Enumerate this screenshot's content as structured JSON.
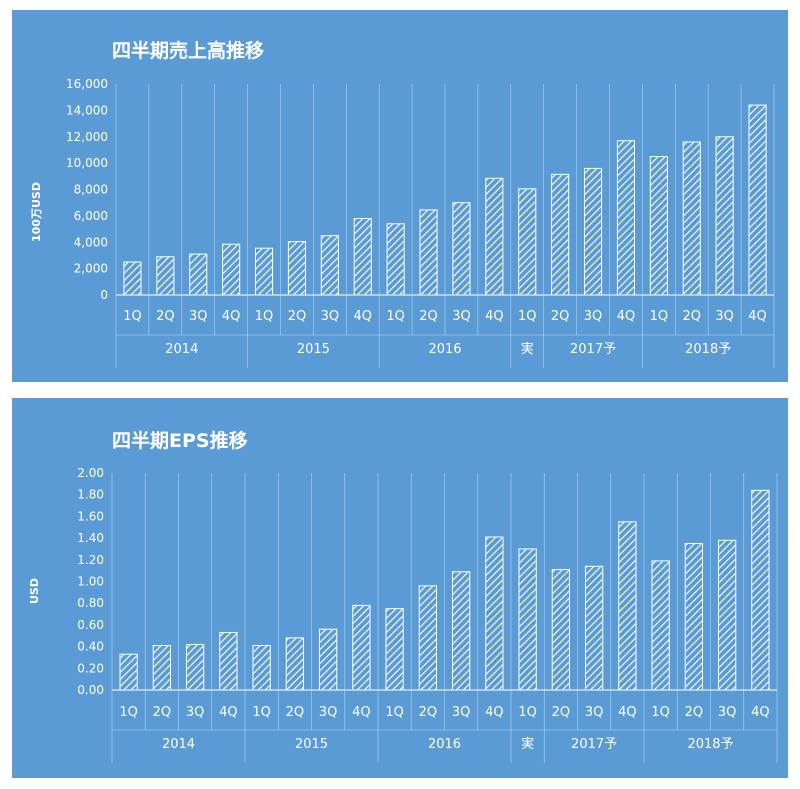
{
  "chart_data": [
    {
      "type": "bar",
      "title": "四半期売上高推移",
      "ylabel": "100万USD",
      "ylim": [
        0,
        16000
      ],
      "yticks": [
        "0",
        "2,000",
        "4,000",
        "6,000",
        "8,000",
        "10,000",
        "12,000",
        "14,000",
        "16,000"
      ],
      "categories": [
        "1Q",
        "2Q",
        "3Q",
        "4Q",
        "1Q",
        "2Q",
        "3Q",
        "4Q",
        "1Q",
        "2Q",
        "3Q",
        "4Q",
        "1Q",
        "2Q",
        "3Q",
        "4Q",
        "1Q",
        "2Q",
        "3Q",
        "4Q"
      ],
      "groups": [
        {
          "label": "2014",
          "span": 4
        },
        {
          "label": "2015",
          "span": 4
        },
        {
          "label": "2016",
          "span": 4
        },
        {
          "label": "実",
          "span": 1
        },
        {
          "label": "2017予",
          "span": 3
        },
        {
          "label": "2018予",
          "span": 4
        }
      ],
      "values": [
        2500,
        2900,
        3100,
        3850,
        3550,
        4050,
        4500,
        5800,
        5400,
        6450,
        7000,
        8850,
        8050,
        9150,
        9600,
        11700,
        10500,
        11600,
        12000,
        14400
      ],
      "grid": false,
      "colors": {
        "background": "#5b9bd5",
        "bar": "#ffffff",
        "text": "#ffffff"
      }
    },
    {
      "type": "bar",
      "title": "四半期EPS推移",
      "ylabel": "USD",
      "ylim": [
        0,
        2.0
      ],
      "yticks": [
        "0.00",
        "0.20",
        "0.40",
        "0.60",
        "0.80",
        "1.00",
        "1.20",
        "1.40",
        "1.60",
        "1.80",
        "2.00"
      ],
      "categories": [
        "1Q",
        "2Q",
        "3Q",
        "4Q",
        "1Q",
        "2Q",
        "3Q",
        "4Q",
        "1Q",
        "2Q",
        "3Q",
        "4Q",
        "1Q",
        "2Q",
        "3Q",
        "4Q",
        "1Q",
        "2Q",
        "3Q",
        "4Q"
      ],
      "groups": [
        {
          "label": "2014",
          "span": 4
        },
        {
          "label": "2015",
          "span": 4
        },
        {
          "label": "2016",
          "span": 4
        },
        {
          "label": "実",
          "span": 1
        },
        {
          "label": "2017予",
          "span": 3
        },
        {
          "label": "2018予",
          "span": 4
        }
      ],
      "values": [
        0.33,
        0.41,
        0.42,
        0.53,
        0.41,
        0.48,
        0.56,
        0.78,
        0.75,
        0.96,
        1.09,
        1.41,
        1.3,
        1.11,
        1.14,
        1.55,
        1.19,
        1.35,
        1.38,
        1.84
      ],
      "grid": false,
      "colors": {
        "background": "#5b9bd5",
        "bar": "#ffffff",
        "text": "#ffffff"
      }
    }
  ]
}
